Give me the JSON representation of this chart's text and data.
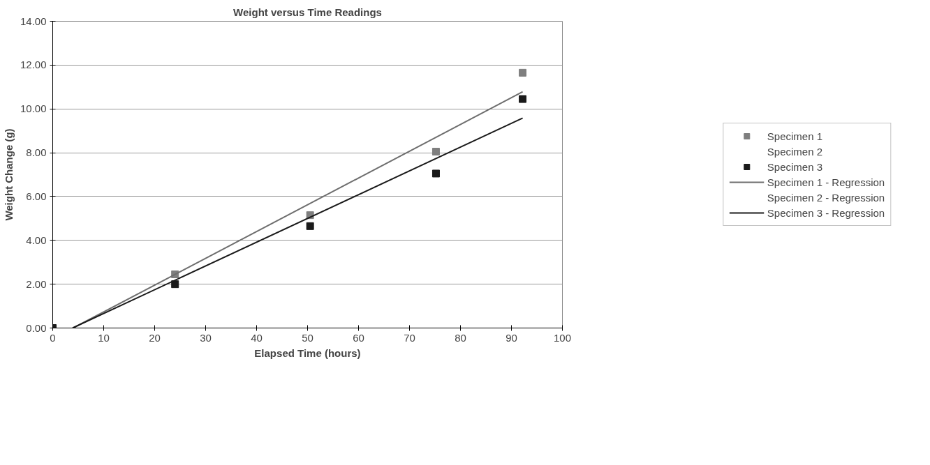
{
  "chart_data": {
    "type": "scatter",
    "title": "Weight versus Time Readings",
    "xlabel": "Elapsed Time (hours)",
    "ylabel": "Weight Change (g)",
    "xlim": [
      0,
      100
    ],
    "xticks": [
      0,
      10,
      20,
      30,
      40,
      50,
      60,
      70,
      80,
      90,
      100
    ],
    "ylim": [
      0,
      14
    ],
    "yticks": [
      {
        "value": 0,
        "label": "0.00"
      },
      {
        "value": 2,
        "label": "2.00"
      },
      {
        "value": 4,
        "label": "4.00"
      },
      {
        "value": 6,
        "label": "6.00"
      },
      {
        "value": 8,
        "label": "8.00"
      },
      {
        "value": 10,
        "label": "10.00"
      },
      {
        "value": 12,
        "label": "12.00"
      },
      {
        "value": 14,
        "label": "14.00"
      }
    ],
    "grid": "y",
    "legend": "right",
    "marker": "square",
    "line_style": "solid",
    "series": [
      {
        "name": "Specimen 1",
        "color": "#7f7f7f",
        "x": [
          24,
          50.5,
          75.2,
          92.2
        ],
        "values": [
          2.45,
          5.15,
          8.05,
          11.65
        ]
      },
      {
        "name": "Specimen 2",
        "color": null
      },
      {
        "name": "Specimen 3",
        "color": "#1a1a1a",
        "x": [
          0,
          24,
          50.5,
          75.2,
          92.2
        ],
        "values": [
          0,
          2.0,
          4.65,
          7.05,
          10.45
        ]
      },
      {
        "name": "Specimen 1 - Regression",
        "type": "line",
        "marker": "none",
        "color": "#6e6e6e",
        "x": [
          4.0,
          92.2
        ],
        "values": [
          0,
          10.78
        ]
      },
      {
        "name": "Specimen 2 - Regression",
        "type": "line",
        "marker": "none",
        "color": null
      },
      {
        "name": "Specimen 3 - Regression",
        "type": "line",
        "marker": "none",
        "color": "#1a1a1a",
        "x": [
          3.9,
          92.2
        ],
        "values": [
          0,
          9.58
        ]
      }
    ]
  }
}
